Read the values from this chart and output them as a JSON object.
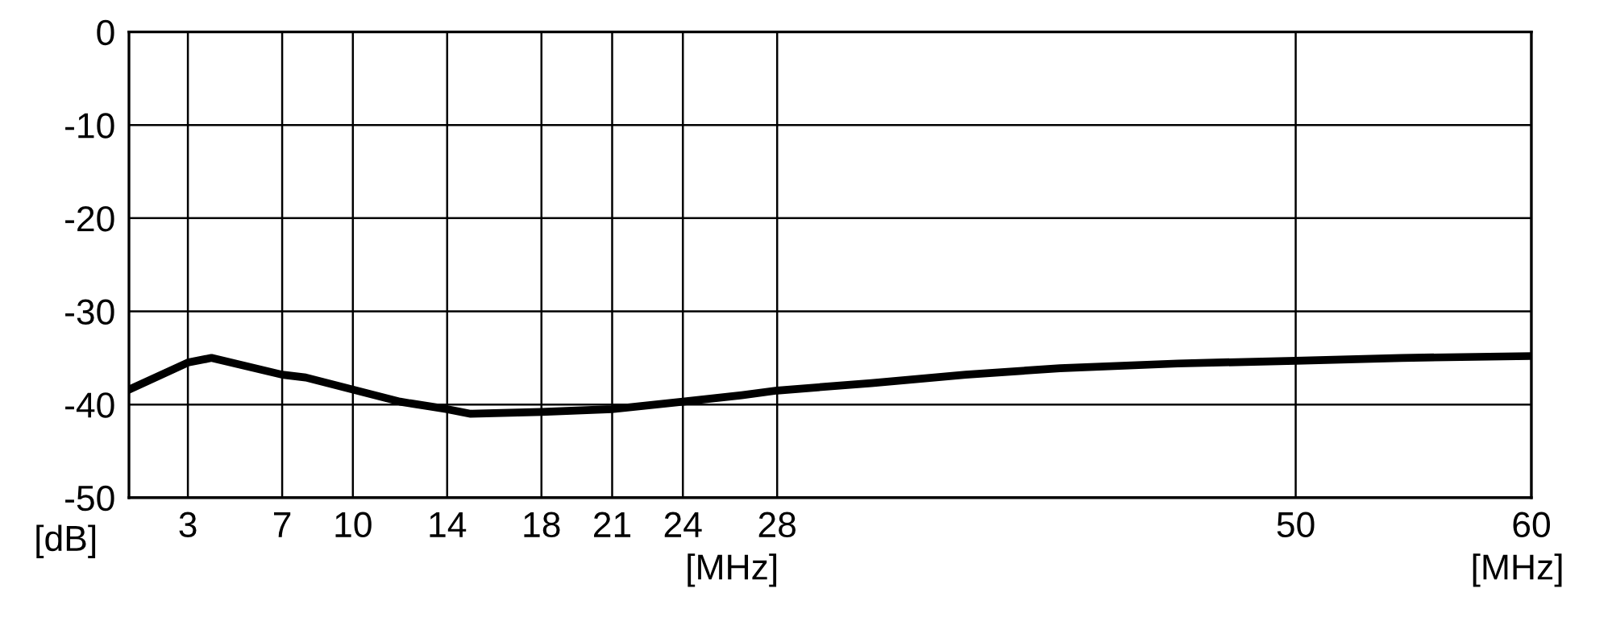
{
  "chart_data": {
    "type": "line",
    "xlabel": "[MHz]",
    "ylabel": "[dB]",
    "annotations": [
      "[MHz]"
    ],
    "x": [
      0.5,
      3,
      4,
      7,
      8,
      10,
      12,
      14,
      15,
      18,
      21,
      24,
      26.5,
      28,
      32,
      36,
      40,
      45,
      50,
      54.5,
      60
    ],
    "series": [
      {
        "color": "#000000",
        "values": [
          -38.4,
          -35.5,
          -35,
          -36.8,
          -37.1,
          -38.4,
          -39.7,
          -40.5,
          -41,
          -40.8,
          -40.5,
          -39.7,
          -39,
          -38.5,
          -37.7,
          -36.8,
          -36.1,
          -35.6,
          -35.3,
          -35,
          -34.8
        ]
      }
    ],
    "xlim": [
      0.5,
      60
    ],
    "xticks": [
      3,
      7,
      10,
      14,
      18,
      21,
      24,
      28,
      50,
      60
    ],
    "ylim": [
      -50,
      0
    ],
    "yticks": [
      -50,
      -40,
      -30,
      -20,
      -10,
      0
    ],
    "grid": true,
    "marker": "none",
    "line_style": "solid"
  }
}
